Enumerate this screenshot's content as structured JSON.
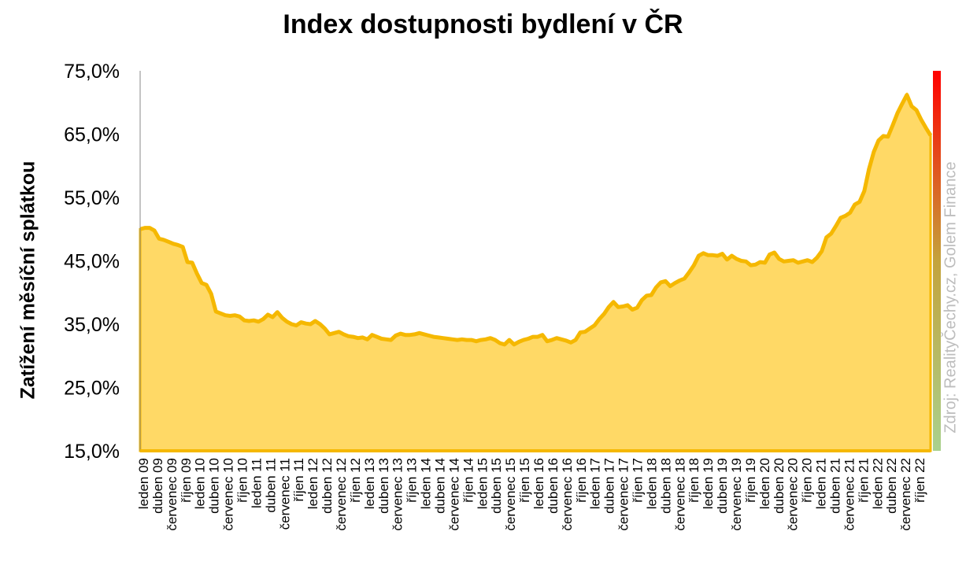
{
  "chart_data": {
    "type": "area",
    "title": "Index dostupnosti bydlení  v ČR",
    "ylabel": "Zatížení měsíční splátkou",
    "xlabel": "",
    "source_note": "Zdroj: RealityČechy.cz, Golem Finance",
    "ylim": [
      15,
      75
    ],
    "y_ticks": [
      "15,0%",
      "25,0%",
      "35,0%",
      "45,0%",
      "55,0%",
      "65,0%",
      "75,0%"
    ],
    "y_tick_values": [
      15,
      25,
      35,
      45,
      55,
      65,
      75
    ],
    "x_tick_labels": [
      "leden 09",
      "duben 09",
      "červenec 09",
      "říjen 09",
      "leden 10",
      "duben 10",
      "červenec 10",
      "říjen 10",
      "leden 11",
      "duben 11",
      "červenec 11",
      "říjen 11",
      "leden 12",
      "duben 12",
      "červenec 12",
      "říjen 12",
      "leden 13",
      "duben 13",
      "červenec 13",
      "říjen 13",
      "leden 14",
      "duben 14",
      "červenec 14",
      "říjen 14",
      "leden 15",
      "duben 15",
      "červenec 15",
      "říjen 15",
      "leden 16",
      "duben 16",
      "červenec 16",
      "říjen 16",
      "leden 17",
      "duben 17",
      "červenec 17",
      "říjen 17",
      "leden 18",
      "duben 18",
      "červenec 18",
      "říjen 18",
      "leden 19",
      "duben 19",
      "červenec 19",
      "říjen 19",
      "leden 20",
      "duben 20",
      "červenec 20",
      "říjen 20",
      "leden 21",
      "duben 21",
      "červenec 21",
      "říjen 21",
      "leden 22",
      "duben 22",
      "červenec 22",
      "říjen 22"
    ],
    "series": [
      {
        "values": [
          50.0,
          50.2,
          50.2,
          49.8,
          48.5,
          48.3,
          48.0,
          47.7,
          47.5,
          47.2,
          44.8,
          44.7,
          43.0,
          41.5,
          41.2,
          39.8,
          37.0,
          36.7,
          36.4,
          36.3,
          36.4,
          36.2,
          35.6,
          35.5,
          35.6,
          35.4,
          35.8,
          36.5,
          36.1,
          36.9,
          36.0,
          35.4,
          35.0,
          34.8,
          35.3,
          35.1,
          35.0,
          35.5,
          35.0,
          34.3,
          33.4,
          33.6,
          33.8,
          33.4,
          33.1,
          33.0,
          32.8,
          32.9,
          32.6,
          33.3,
          33.0,
          32.7,
          32.6,
          32.5,
          33.2,
          33.5,
          33.3,
          33.3,
          33.4,
          33.6,
          33.4,
          33.2,
          33.0,
          32.9,
          32.8,
          32.7,
          32.6,
          32.5,
          32.6,
          32.5,
          32.5,
          32.3,
          32.5,
          32.6,
          32.8,
          32.5,
          32.0,
          31.8,
          32.5,
          31.8,
          32.2,
          32.5,
          32.7,
          33.0,
          33.0,
          33.3,
          32.3,
          32.5,
          32.8,
          32.6,
          32.4,
          32.1,
          32.5,
          33.7,
          33.8,
          34.3,
          34.8,
          35.8,
          36.6,
          37.7,
          38.5,
          37.7,
          37.8,
          38.0,
          37.3,
          37.6,
          38.8,
          39.5,
          39.6,
          40.8,
          41.6,
          41.8,
          41.0,
          41.5,
          41.9,
          42.2,
          43.2,
          44.3,
          45.8,
          46.2,
          45.9,
          45.9,
          45.8,
          46.1,
          45.2,
          45.8,
          45.3,
          45.0,
          44.9,
          44.3,
          44.4,
          44.8,
          44.7,
          46.0,
          46.3,
          45.3,
          44.9,
          45.0,
          45.1,
          44.7,
          44.9,
          45.1,
          44.8,
          45.5,
          46.5,
          48.7,
          49.3,
          50.5,
          51.8,
          52.1,
          52.6,
          53.9,
          54.3,
          56.0,
          59.5,
          62.2,
          64.0,
          64.7,
          64.6,
          66.4,
          68.3,
          69.8,
          71.2,
          69.4,
          68.8,
          67.3,
          66.0,
          64.8
        ]
      }
    ],
    "colors": {
      "area_fill": "#FFD966",
      "line": "#F5B800",
      "scale_bar_top": "#ff0000",
      "scale_bar_mid": "#c4a33c",
      "scale_bar_bottom": "#a9d18e",
      "source_note": "#bdbdbd"
    },
    "grid": false,
    "legend": "none"
  }
}
